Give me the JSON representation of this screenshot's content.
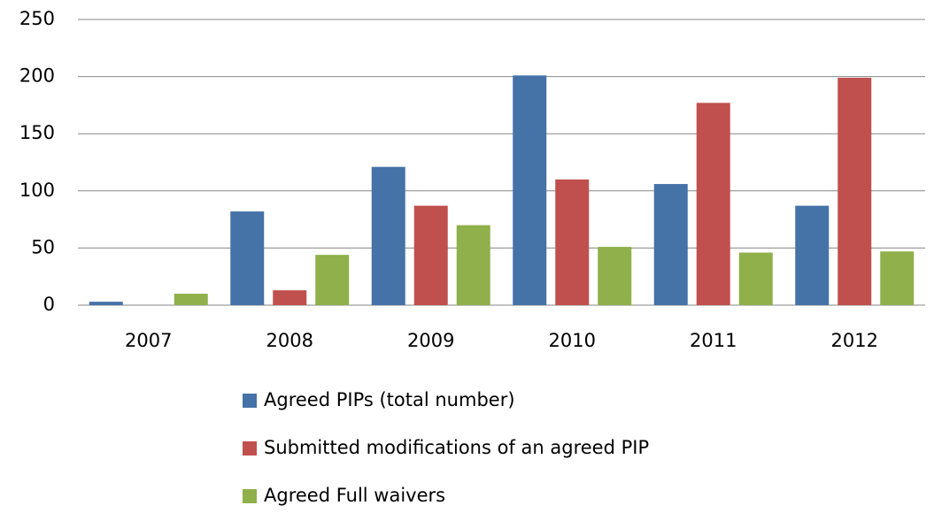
{
  "chart_data": {
    "type": "bar",
    "categories": [
      "2007",
      "2008",
      "2009",
      "2010",
      "2011",
      "2012"
    ],
    "series": [
      {
        "name": "Agreed PIPs (total number)",
        "color": "#4572a7",
        "values": [
          3,
          82,
          121,
          201,
          106,
          87
        ]
      },
      {
        "name": "Submitted modifications of an agreed PIP",
        "color": "#c0504d",
        "values": [
          0,
          13,
          87,
          110,
          177,
          199
        ]
      },
      {
        "name": "Agreed Full waivers",
        "color": "#8fb04a",
        "values": [
          10,
          44,
          70,
          51,
          46,
          47
        ]
      }
    ],
    "ylim": [
      0,
      250
    ],
    "yticks": [
      0,
      50,
      100,
      150,
      200,
      250
    ],
    "grid": true,
    "legend": "bottom"
  }
}
